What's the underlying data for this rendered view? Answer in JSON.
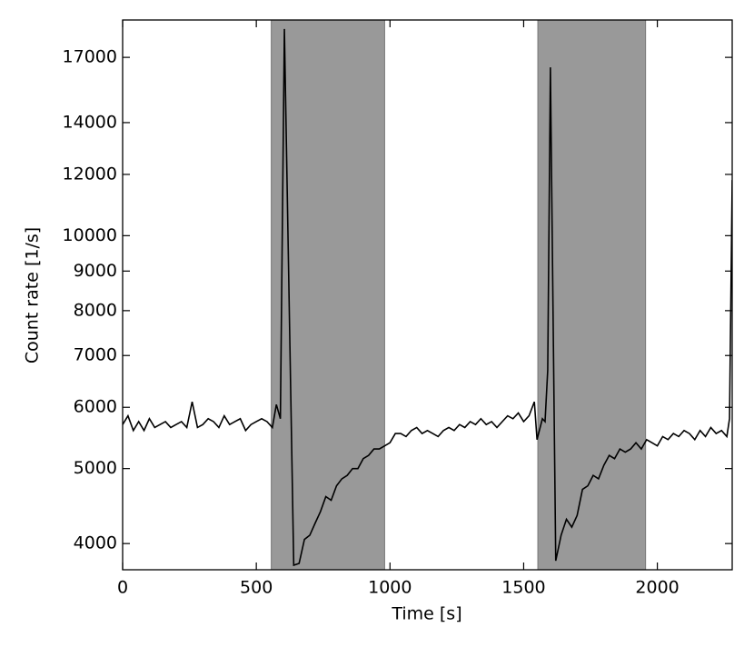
{
  "chart_data": {
    "type": "line",
    "xlabel": "Time [s]",
    "ylabel": "Count rate [1/s]",
    "x": [
      0,
      20,
      40,
      60,
      80,
      100,
      120,
      140,
      160,
      180,
      200,
      220,
      240,
      260,
      280,
      300,
      320,
      340,
      360,
      380,
      400,
      420,
      440,
      460,
      480,
      500,
      520,
      540,
      560,
      575,
      590,
      605,
      640,
      660,
      680,
      700,
      720,
      740,
      760,
      780,
      800,
      820,
      840,
      860,
      880,
      900,
      920,
      940,
      960,
      980,
      1000,
      1020,
      1040,
      1060,
      1080,
      1100,
      1120,
      1140,
      1160,
      1180,
      1200,
      1220,
      1240,
      1260,
      1280,
      1300,
      1320,
      1340,
      1360,
      1380,
      1400,
      1420,
      1440,
      1460,
      1480,
      1500,
      1520,
      1540,
      1550,
      1570,
      1580,
      1590,
      1600,
      1620,
      1640,
      1660,
      1680,
      1700,
      1720,
      1740,
      1760,
      1780,
      1800,
      1820,
      1840,
      1860,
      1880,
      1900,
      1920,
      1940,
      1960,
      1980,
      2000,
      2020,
      2040,
      2060,
      2080,
      2100,
      2120,
      2140,
      2160,
      2180,
      2200,
      2220,
      2240,
      2260,
      2270,
      2280
    ],
    "series": [
      {
        "color": "#000000",
        "values": [
          5700,
          5850,
          5600,
          5750,
          5600,
          5800,
          5650,
          5700,
          5750,
          5650,
          5700,
          5750,
          5650,
          6100,
          5650,
          5700,
          5800,
          5750,
          5650,
          5850,
          5700,
          5750,
          5800,
          5600,
          5700,
          5750,
          5800,
          5750,
          5650,
          6050,
          5800,
          18500,
          3750,
          3770,
          4050,
          4100,
          4250,
          4400,
          4600,
          4550,
          4750,
          4850,
          4900,
          5000,
          5000,
          5150,
          5200,
          5300,
          5300,
          5350,
          5400,
          5550,
          5550,
          5500,
          5600,
          5650,
          5550,
          5600,
          5550,
          5500,
          5600,
          5650,
          5600,
          5700,
          5650,
          5750,
          5700,
          5800,
          5700,
          5750,
          5650,
          5750,
          5850,
          5800,
          5900,
          5750,
          5850,
          6100,
          5450,
          5800,
          5750,
          6700,
          16500,
          3800,
          4100,
          4300,
          4200,
          4350,
          4700,
          4750,
          4900,
          4850,
          5050,
          5200,
          5150,
          5300,
          5250,
          5300,
          5400,
          5300,
          5450,
          5400,
          5350,
          5500,
          5450,
          5550,
          5500,
          5600,
          5550,
          5450,
          5600,
          5500,
          5650,
          5550,
          5600,
          5500,
          5800,
          11800
        ]
      }
    ],
    "shaded_regions": [
      [
        556,
        980
      ],
      [
        1553,
        1956
      ]
    ],
    "shade_color": "#999999",
    "xlim": [
      0,
      2280
    ],
    "xticks": [
      0,
      500,
      1000,
      1500,
      2000
    ],
    "ylim": [
      3700,
      19000
    ],
    "ylog": true,
    "yticks": [
      4000,
      5000,
      6000,
      7000,
      8000,
      9000,
      10000,
      12000,
      14000,
      17000
    ]
  }
}
